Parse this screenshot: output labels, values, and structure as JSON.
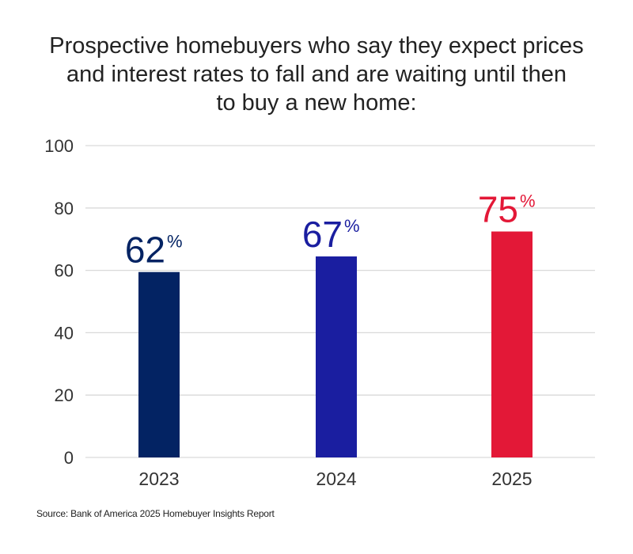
{
  "chart_data": {
    "type": "bar",
    "title": "Prospective homebuyers who say they expect prices\nand interest rates to fall and are waiting until then\nto buy a new home:",
    "categories": [
      "2023",
      "2024",
      "2025"
    ],
    "values": [
      62,
      67,
      75
    ],
    "data_labels": [
      {
        "number": "62",
        "unit": "%"
      },
      {
        "number": "67",
        "unit": "%"
      },
      {
        "number": "75",
        "unit": "%"
      }
    ],
    "colors": [
      "#032363",
      "#1a1ea0",
      "#e31837"
    ],
    "gridline_color": "#d9d9d9",
    "ylim": [
      0,
      100
    ],
    "y_ticks": [
      "0",
      "20",
      "40",
      "60",
      "80",
      "100"
    ],
    "xlabel": "",
    "ylabel": "",
    "grid": true
  },
  "source": "Source: Bank of America 2025 Homebuyer Insights Report"
}
